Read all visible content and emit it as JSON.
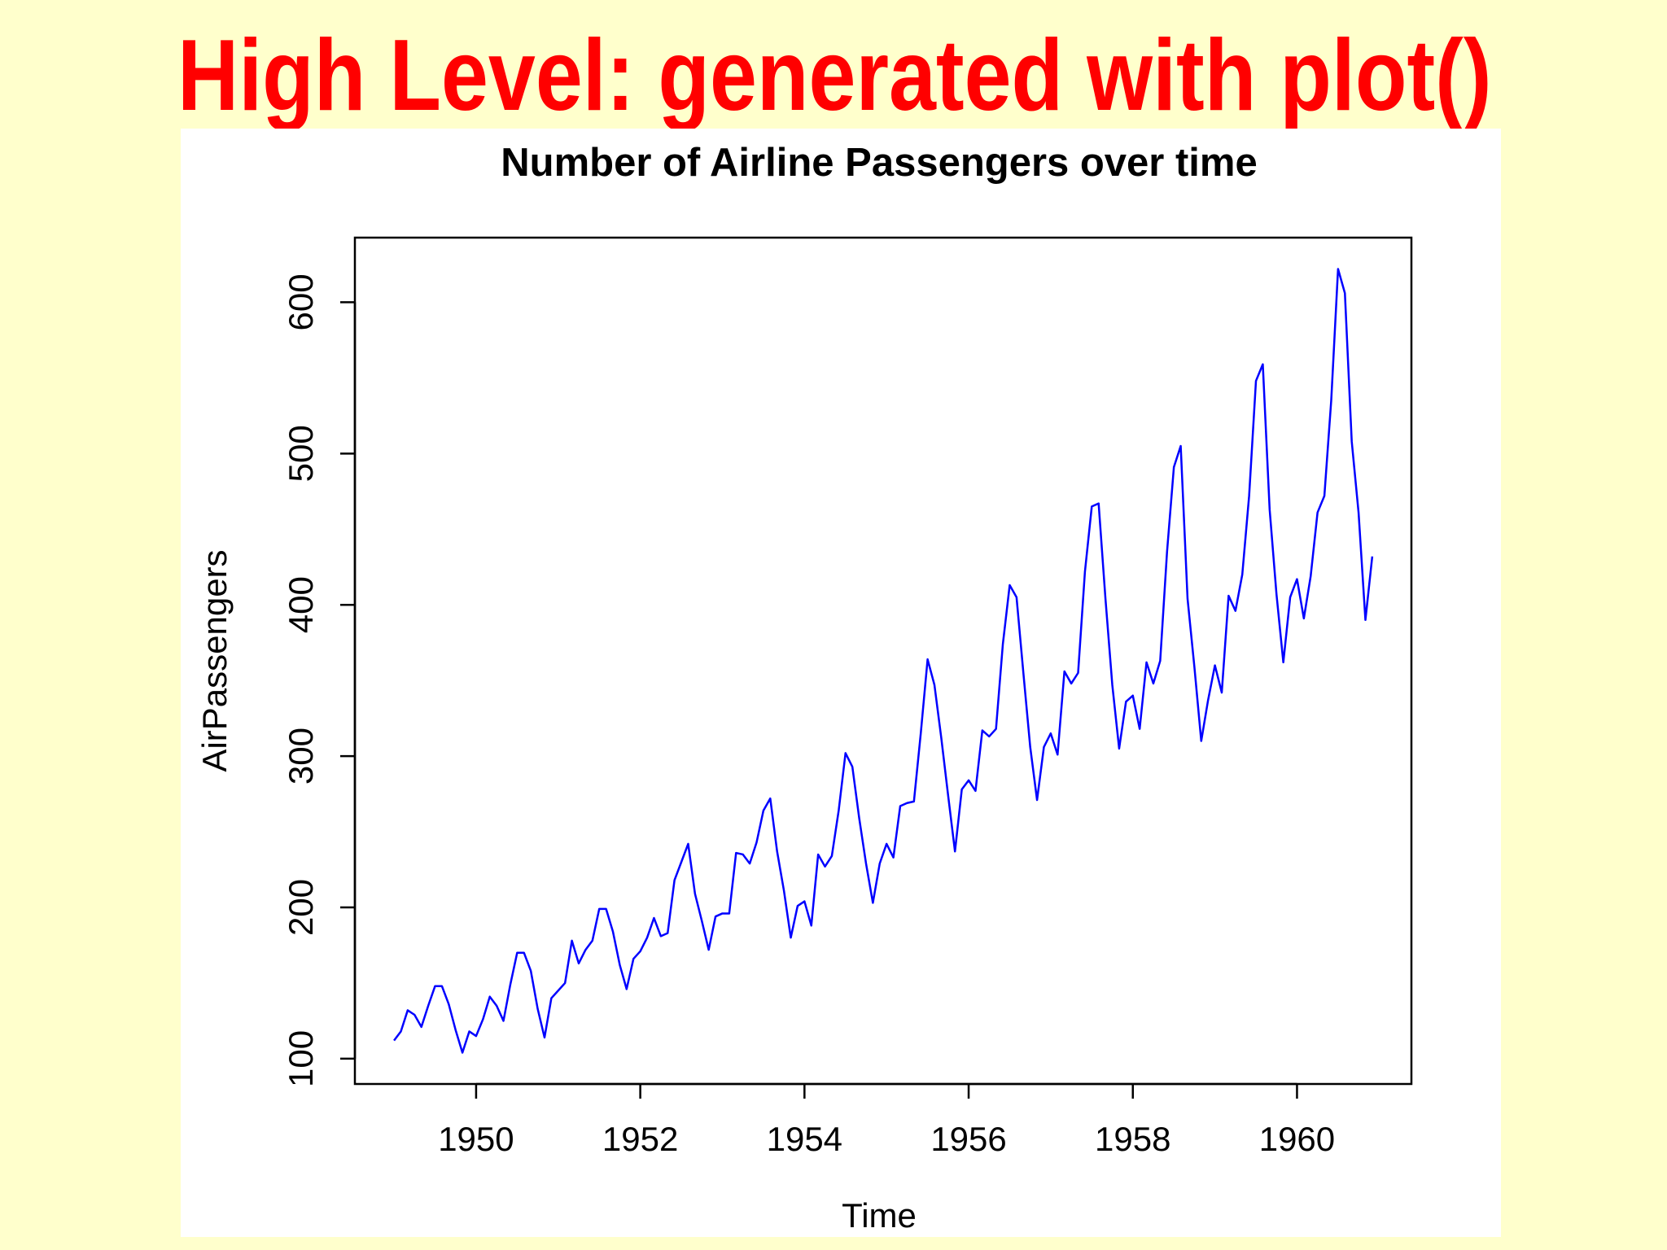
{
  "slide": {
    "title": "High Level: generated with plot()",
    "title_color": "#ff0000",
    "background": "#ffffcc"
  },
  "chart_data": {
    "type": "line",
    "title": "Number of Airline Passengers over time",
    "xlabel": "Time",
    "ylabel": "AirPassengers",
    "xlim": [
      1949,
      1960.917
    ],
    "ylim": [
      104,
      622
    ],
    "xticks": [
      1950,
      1952,
      1954,
      1956,
      1958,
      1960
    ],
    "yticks": [
      100,
      200,
      300,
      400,
      500,
      600
    ],
    "grid": false,
    "line_color": "#0000ff",
    "x_start": 1949,
    "x_frequency": 12,
    "series": [
      {
        "values": [
          112,
          118,
          132,
          129,
          121,
          135,
          148,
          148,
          136,
          119,
          104,
          118,
          115,
          126,
          141,
          135,
          125,
          149,
          170,
          170,
          158,
          133,
          114,
          140,
          145,
          150,
          178,
          163,
          172,
          178,
          199,
          199,
          184,
          162,
          146,
          166,
          171,
          180,
          193,
          181,
          183,
          218,
          230,
          242,
          209,
          191,
          172,
          194,
          196,
          196,
          236,
          235,
          229,
          243,
          264,
          272,
          237,
          211,
          180,
          201,
          204,
          188,
          235,
          227,
          234,
          264,
          302,
          293,
          259,
          229,
          203,
          229,
          242,
          233,
          267,
          269,
          270,
          315,
          364,
          347,
          312,
          274,
          237,
          278,
          284,
          277,
          317,
          313,
          318,
          374,
          413,
          405,
          355,
          306,
          271,
          306,
          315,
          301,
          356,
          348,
          355,
          422,
          465,
          467,
          404,
          347,
          305,
          336,
          340,
          318,
          362,
          348,
          363,
          435,
          491,
          505,
          404,
          359,
          310,
          337,
          360,
          342,
          406,
          396,
          420,
          472,
          548,
          559,
          463,
          407,
          362,
          405,
          417,
          391,
          419,
          461,
          472,
          535,
          622,
          606,
          508,
          461,
          390,
          432
        ]
      }
    ]
  }
}
